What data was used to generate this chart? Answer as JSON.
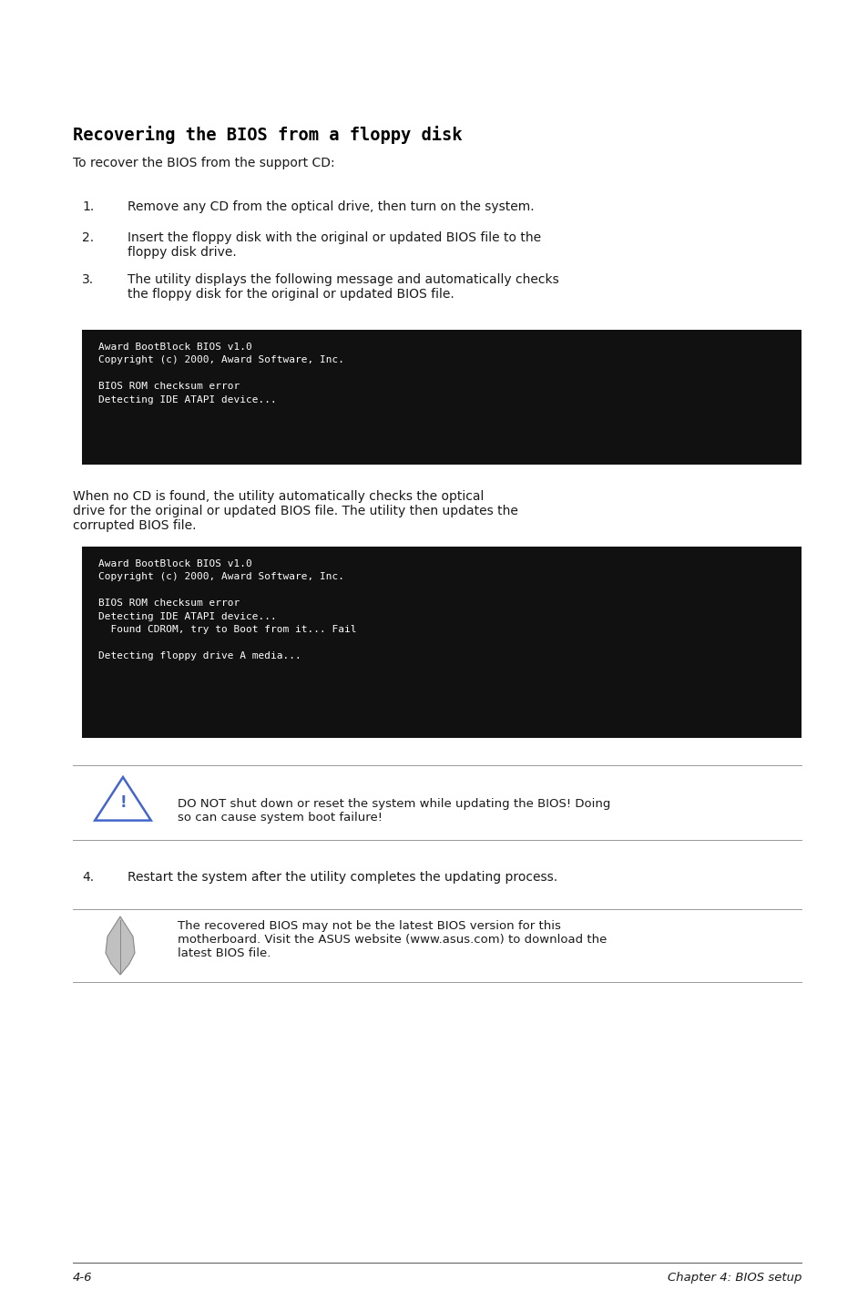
{
  "title": "Recovering the BIOS from a floppy disk",
  "subtitle": "To recover the BIOS from the support CD:",
  "steps": [
    "Remove any CD from the optical drive, then turn on the system.",
    "Insert the floppy disk with the original or updated BIOS file to the\nfloppy disk drive.",
    "The utility displays the following message and automatically checks\nthe floppy disk for the original or updated BIOS file."
  ],
  "code_box1": "Award BootBlock BIOS v1.0\nCopyright (c) 2000, Award Software, Inc.\n\nBIOS ROM checksum error\nDetecting IDE ATAPI device...",
  "between_text": "When no CD is found, the utility automatically checks the optical\ndrive for the original or updated BIOS file. The utility then updates the\ncorrupted BIOS file.",
  "code_box2": "Award BootBlock BIOS v1.0\nCopyright (c) 2000, Award Software, Inc.\n\nBIOS ROM checksum error\nDetecting IDE ATAPI device...\n  Found CDROM, try to Boot from it... Fail\n\nDetecting floppy drive A media...",
  "warning_text": "DO NOT shut down or reset the system while updating the BIOS! Doing\nso can cause system boot failure!",
  "step4": "Restart the system after the utility completes the updating process.",
  "note_text": "The recovered BIOS may not be the latest BIOS version for this\nmotherboard. Visit the ASUS website (www.asus.com) to download the\nlatest BIOS file.",
  "footer_left": "4-6",
  "footer_right": "Chapter 4: BIOS setup",
  "bg_color": "#ffffff",
  "text_color": "#1a1a1a",
  "code_bg": "#111111",
  "code_text": "#ffffff",
  "title_color": "#000000",
  "line_color": "#999999"
}
